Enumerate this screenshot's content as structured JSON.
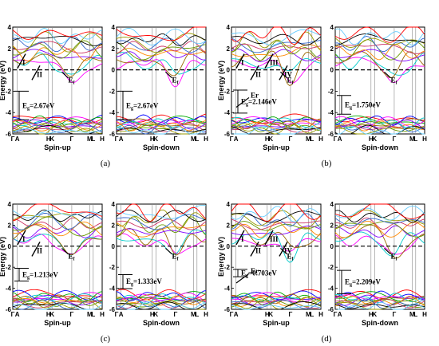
{
  "figure": {
    "panel_labels": [
      "(a)",
      "(b)",
      "(c)",
      "(d)"
    ]
  },
  "chart_data": [
    {
      "type": "line",
      "panel": "(a)",
      "ylabel": "Energy (eV)",
      "ylim": [
        -6,
        4
      ],
      "yticks": [
        -6,
        -4,
        -2,
        0,
        2,
        4
      ],
      "kpath_labels": [
        "Γ",
        "A",
        "H",
        "K",
        "Γ",
        "M",
        "L",
        "H"
      ],
      "subplots": [
        {
          "xlabel": "Spin-up",
          "gap_label": "E_g=2.67eV",
          "gap_value_eV": 2.67,
          "gap_range": [
            -2.0,
            -4.67
          ],
          "annotations": [
            "I",
            "II",
            "E_f"
          ]
        },
        {
          "xlabel": "Spin-down",
          "gap_label": "E_g=2.67eV",
          "gap_value_eV": 2.67,
          "gap_range": [
            -2.0,
            -4.67
          ],
          "annotations": [
            "E_f"
          ]
        }
      ]
    },
    {
      "type": "line",
      "panel": "(b)",
      "ylabel": "Energy (eV)",
      "ylim": [
        -6,
        4
      ],
      "yticks": [
        -6,
        -4,
        -2,
        0,
        2,
        4
      ],
      "kpath_labels": [
        "Γ",
        "A",
        "H",
        "K",
        "Γ",
        "M",
        "L",
        "H"
      ],
      "subplots": [
        {
          "xlabel": "Spin-up",
          "gap_label": "E_g=2.146eV",
          "gap_value_eV": 2.146,
          "gap_range": [
            -1.9,
            -4.05
          ],
          "annotations": [
            "I",
            "II",
            "III",
            "IV",
            "E_f",
            "Er"
          ]
        },
        {
          "xlabel": "Spin-down",
          "gap_label": "E_g=1.750eV",
          "gap_value_eV": 1.75,
          "gap_range": [
            -2.4,
            -4.15
          ],
          "annotations": [
            "E_f"
          ]
        }
      ]
    },
    {
      "type": "line",
      "panel": "(c)",
      "ylabel": "Energy (eV)",
      "ylim": [
        -6,
        4
      ],
      "yticks": [
        -6,
        -4,
        -2,
        0,
        2,
        4
      ],
      "kpath_labels": [
        "Γ",
        "A",
        "H",
        "K",
        "Γ",
        "M",
        "L",
        "H"
      ],
      "subplots": [
        {
          "xlabel": "Spin-up",
          "gap_label": "E_g=1.213eV",
          "gap_value_eV": 1.213,
          "gap_range": [
            -2.1,
            -3.31
          ],
          "annotations": [
            "I",
            "II",
            "E_f"
          ]
        },
        {
          "xlabel": "Spin-down",
          "gap_label": "E_g=1.333eV",
          "gap_value_eV": 1.333,
          "gap_range": [
            -2.7,
            -4.03
          ],
          "annotations": [
            "E_f"
          ]
        }
      ]
    },
    {
      "type": "line",
      "panel": "(d)",
      "ylabel": "Energy (eV)",
      "ylim": [
        -6,
        4
      ],
      "yticks": [
        -6,
        -4,
        -2,
        0,
        2,
        4
      ],
      "kpath_labels": [
        "Γ",
        "A",
        "H",
        "K",
        "Γ",
        "M",
        "L",
        "H"
      ],
      "subplots": [
        {
          "xlabel": "Spin-up",
          "gap_label": "E_g=0.703eV",
          "gap_value_eV": 0.703,
          "gap_range": [
            -2.2,
            -2.9
          ],
          "annotations": [
            "I",
            "II",
            "III",
            "IV",
            "E_f",
            "Er"
          ]
        },
        {
          "xlabel": "Spin-down",
          "gap_label": "E_g=2.209eV",
          "gap_value_eV": 2.209,
          "gap_range": [
            -2.3,
            -4.51
          ],
          "annotations": [
            "E_f"
          ]
        }
      ]
    }
  ]
}
